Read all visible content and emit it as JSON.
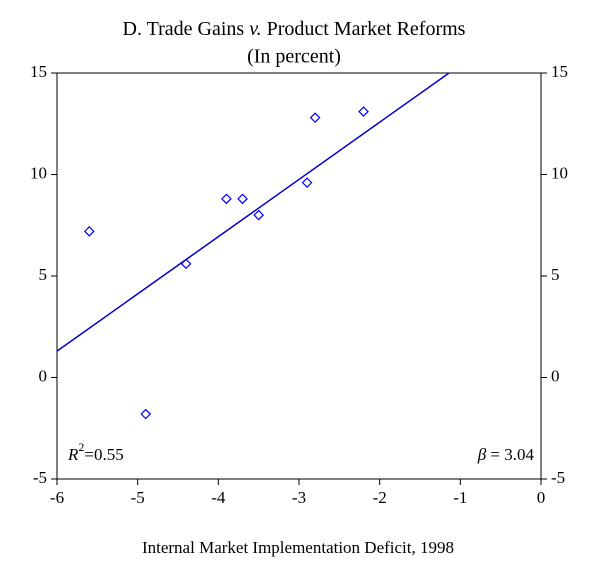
{
  "chart_data": {
    "type": "scatter",
    "title_parts": [
      "D. Trade Gains ",
      "v.",
      " Product Market Reforms"
    ],
    "subtitle": "(In percent)",
    "x_label": "Internal Market Implementation Deficit, 1998",
    "x": [
      -5.6,
      -4.9,
      -4.4,
      -3.9,
      -3.7,
      -3.5,
      -2.9,
      -2.8,
      -2.2
    ],
    "values": [
      7.2,
      -1.8,
      5.6,
      8.8,
      8.8,
      8.0,
      9.6,
      12.8,
      13.1
    ],
    "color": "#0000ff",
    "fit_line": {
      "x": [
        -6,
        -1.14
      ],
      "values": [
        1.3,
        15
      ],
      "color": "#0000cc"
    },
    "r_squared": {
      "symbol": "R",
      "superscript": "2",
      "text": "=0.55"
    },
    "beta": {
      "symbol": "β",
      "text": " = 3.04"
    },
    "xlim": [
      -6,
      0
    ],
    "xticks": [
      -6,
      -5,
      -4,
      -3,
      -2,
      -1,
      0
    ],
    "ylim": [
      -5,
      15
    ],
    "yticks": [
      -5,
      0,
      5,
      10,
      15
    ],
    "y2lim": [
      -5,
      15
    ],
    "y2ticks": [
      -5,
      0,
      5,
      10,
      15
    ],
    "grid": false
  }
}
